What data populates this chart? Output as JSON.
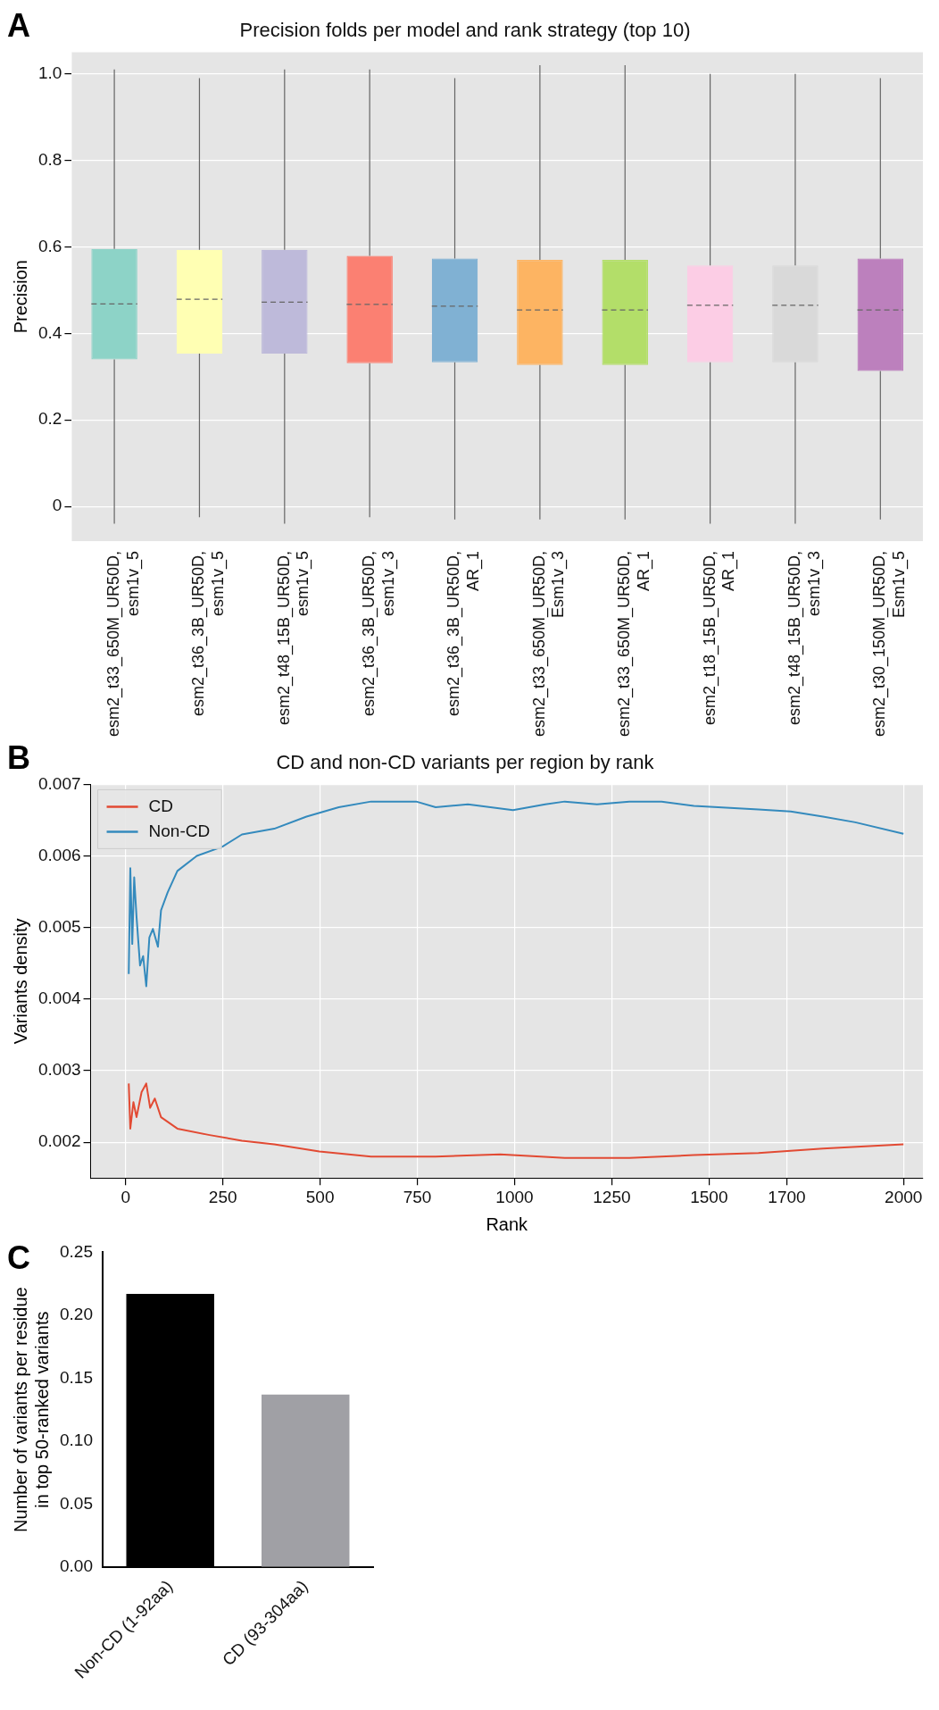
{
  "chart_data": [
    {
      "type": "box",
      "title": "Precision folds per model and rank strategy (top 10)",
      "ylabel": "Precision",
      "annotations": [
        "A"
      ],
      "categories": [
        "esm2_t33_650M_UR50D, esm1v_5",
        "esm2_t36_3B_UR50D, esm1v_5",
        "esm2_t48_15B_UR50D, esm1v_5",
        "esm2_t36_3B_UR50D, esm1v_3",
        "esm2_t36_3B_UR50D, AR_1",
        "esm2_t33_650M_UR50D, Esm1v_3",
        "esm2_t33_650M_UR50D, AR_1",
        "esm2_t18_15B_UR50D, AR_1",
        "esm2_t48_15B_UR50D, esm1v_3",
        "esm2_t30_150M_UR50D, Esm1v_5"
      ],
      "colors": [
        "#8dd3c7",
        "#ffffb3",
        "#bebada",
        "#fb8072",
        "#80b1d3",
        "#fdb462",
        "#b3de69",
        "#fccde5",
        "#d9d9d9",
        "#bc80bd"
      ],
      "boxes": [
        {
          "low": -0.04,
          "q1": 0.34,
          "median": 0.468,
          "q3": 0.595,
          "high": 1.01
        },
        {
          "low": -0.025,
          "q1": 0.353,
          "median": 0.479,
          "q3": 0.593,
          "high": 0.99
        },
        {
          "low": -0.04,
          "q1": 0.353,
          "median": 0.472,
          "q3": 0.593,
          "high": 1.01
        },
        {
          "low": -0.025,
          "q1": 0.331,
          "median": 0.467,
          "q3": 0.579,
          "high": 1.01
        },
        {
          "low": -0.03,
          "q1": 0.333,
          "median": 0.463,
          "q3": 0.573,
          "high": 0.99
        },
        {
          "low": -0.03,
          "q1": 0.327,
          "median": 0.454,
          "q3": 0.57,
          "high": 1.02
        },
        {
          "low": -0.03,
          "q1": 0.327,
          "median": 0.454,
          "q3": 0.57,
          "high": 1.02
        },
        {
          "low": -0.04,
          "q1": 0.333,
          "median": 0.465,
          "q3": 0.557,
          "high": 1.0
        },
        {
          "low": -0.04,
          "q1": 0.333,
          "median": 0.465,
          "q3": 0.557,
          "high": 1.0
        },
        {
          "low": -0.03,
          "q1": 0.313,
          "median": 0.454,
          "q3": 0.573,
          "high": 0.99
        }
      ],
      "ylim": [
        -0.08,
        1.05
      ],
      "yticks": [
        0,
        0.2,
        0.4,
        0.6,
        0.8,
        {
          "value": 1,
          "label": "1.0"
        }
      ],
      "grid": "y",
      "legend": false
    },
    {
      "type": "line",
      "title": "CD and non-CD variants per region by rank",
      "xlabel": "Rank",
      "ylabel": "Variants density",
      "annotations": [
        "B"
      ],
      "series": [
        {
          "name": "CD",
          "color": "#e24a33",
          "x": [
            8,
            12,
            20,
            28,
            41,
            53,
            63,
            75,
            91,
            133,
            216,
            299,
            382,
            498,
            631,
            797,
            963,
            1129,
            1295,
            1461,
            1627,
            1793,
            2000
          ],
          "values": [
            0.00282,
            0.00219,
            0.00256,
            0.00235,
            0.0027,
            0.00282,
            0.00248,
            0.00261,
            0.00235,
            0.00219,
            0.0021,
            0.00202,
            0.00197,
            0.00187,
            0.0018,
            0.0018,
            0.00183,
            0.00178,
            0.00178,
            0.00182,
            0.00185,
            0.00191,
            0.00197
          ]
        },
        {
          "name": "Non-CD",
          "color": "#348abd",
          "x": [
            8,
            12,
            17,
            22,
            28,
            37,
            45,
            53,
            61,
            70,
            83,
            91,
            108,
            133,
            183,
            249,
            299,
            382,
            465,
            548,
            631,
            747,
            797,
            880,
            996,
            1079,
            1129,
            1212,
            1295,
            1378,
            1461,
            1627,
            1710,
            1793,
            1876,
            2000
          ],
          "values": [
            0.00435,
            0.00583,
            0.00477,
            0.0057,
            0.00515,
            0.00447,
            0.0046,
            0.00418,
            0.00486,
            0.00498,
            0.00473,
            0.00524,
            0.00549,
            0.00579,
            0.006,
            0.00613,
            0.0063,
            0.00638,
            0.00655,
            0.00668,
            0.00676,
            0.00676,
            0.00668,
            0.00672,
            0.00664,
            0.00672,
            0.00676,
            0.00672,
            0.00676,
            0.00676,
            0.0067,
            0.00665,
            0.00662,
            0.00655,
            0.00647,
            0.00631
          ]
        }
      ],
      "xlim": [
        -90,
        2050
      ],
      "xticks": [
        0,
        250,
        500,
        750,
        1000,
        1250,
        1500,
        1700,
        2000
      ],
      "ylim": [
        0.0015,
        0.007
      ],
      "yticks": [
        0.002,
        0.003,
        0.004,
        0.005,
        0.006,
        0.007
      ],
      "grid": true,
      "legend": "top left"
    },
    {
      "type": "bar",
      "ylabel": "Number of variants per residue in top 50-ranked variants",
      "annotations": [
        "C"
      ],
      "categories": [
        "Non-CD (1-92aa)",
        "CD (93-304aa)"
      ],
      "values": [
        0.217,
        0.137
      ],
      "colors": [
        "#000000",
        "#a0a0a5"
      ],
      "ylim": [
        0,
        0.25
      ],
      "yticks": [
        {
          "value": 0,
          "label": "0.00"
        },
        0.05,
        {
          "value": 0.1,
          "label": "0.10"
        },
        0.15,
        {
          "value": 0.2,
          "label": "0.20"
        },
        0.25
      ],
      "grid": false,
      "legend": false
    }
  ]
}
